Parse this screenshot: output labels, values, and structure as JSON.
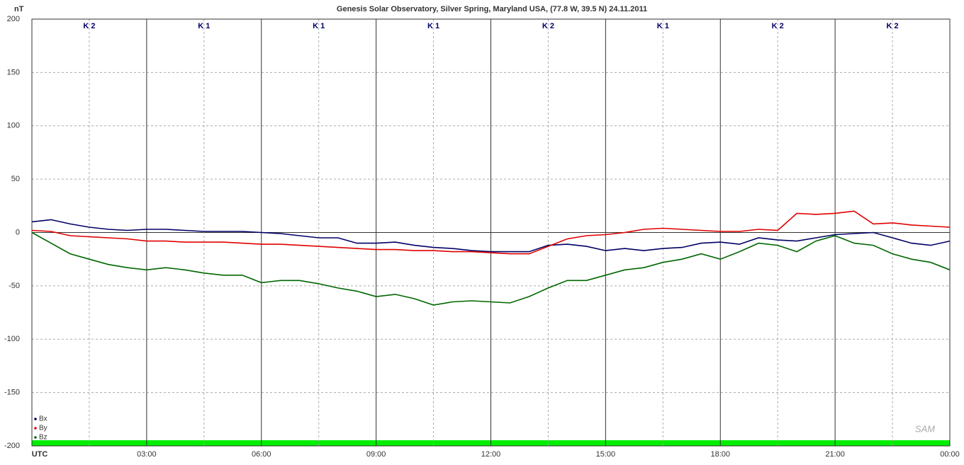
{
  "chart_data": {
    "type": "line",
    "title": "Genesis Solar Observatory, Silver Spring, Maryland USA, (77.8 W, 39.5 N)  24.11.2011",
    "y_label": "nT",
    "k_labels": [
      "K 2",
      "K 1",
      "K 1",
      "K 1",
      "K 2",
      "K 1",
      "K 2",
      "K 2"
    ],
    "x": [
      0,
      0.5,
      1,
      1.5,
      2,
      2.5,
      3,
      3.5,
      4,
      4.5,
      5,
      5.5,
      6,
      6.5,
      7,
      7.5,
      8,
      8.5,
      9,
      9.5,
      10,
      10.5,
      11,
      11.5,
      12,
      12.5,
      13,
      13.5,
      14,
      14.5,
      15,
      15.5,
      16,
      16.5,
      17,
      17.5,
      18,
      18.5,
      19,
      19.5,
      20,
      20.5,
      21,
      21.5,
      22,
      22.5,
      23,
      23.5,
      24
    ],
    "series": [
      {
        "name": "Bx",
        "color": "#000066",
        "values": [
          10,
          12,
          8,
          5,
          3,
          2,
          3,
          3,
          2,
          1,
          1,
          1,
          0,
          -1,
          -3,
          -5,
          -5,
          -10,
          -10,
          -9,
          -12,
          -14,
          -15,
          -17,
          -18,
          -18,
          -18,
          -12,
          -11,
          -13,
          -17,
          -15,
          -17,
          -15,
          -14,
          -10,
          -9,
          -11,
          -5,
          -7,
          -8,
          -5,
          -2,
          -1,
          0,
          -5,
          -10,
          -12,
          -8
        ]
      },
      {
        "name": "By",
        "color": "#e00000",
        "values": [
          2,
          1,
          -3,
          -4,
          -5,
          -6,
          -8,
          -8,
          -9,
          -9,
          -9,
          -10,
          -11,
          -11,
          -12,
          -13,
          -14,
          -15,
          -16,
          -16,
          -17,
          -17,
          -18,
          -18,
          -19,
          -20,
          -20,
          -13,
          -6,
          -3,
          -2,
          0,
          3,
          4,
          3,
          2,
          1,
          1,
          3,
          2,
          18,
          17,
          18,
          20,
          8,
          9,
          7,
          6,
          5
        ]
      },
      {
        "name": "Bz",
        "color": "#006600",
        "values": [
          0,
          -10,
          -20,
          -25,
          -30,
          -33,
          -35,
          -33,
          -35,
          -38,
          -40,
          -40,
          -47,
          -45,
          -45,
          -48,
          -52,
          -55,
          -60,
          -58,
          -62,
          -68,
          -65,
          -64,
          -65,
          -66,
          -60,
          -52,
          -45,
          -45,
          -40,
          -35,
          -33,
          -28,
          -25,
          -20,
          -25,
          -18,
          -10,
          -12,
          -18,
          -8,
          -3,
          -10,
          -12,
          -20,
          -25,
          -28,
          -35
        ]
      }
    ],
    "xlim": [
      0,
      24
    ],
    "xticks": [
      {
        "value": 0,
        "label": "UTC"
      },
      {
        "value": 3,
        "label": "03:00"
      },
      {
        "value": 6,
        "label": "06:00"
      },
      {
        "value": 9,
        "label": "09:00"
      },
      {
        "value": 12,
        "label": "12:00"
      },
      {
        "value": 15,
        "label": "15:00"
      },
      {
        "value": 18,
        "label": "18:00"
      },
      {
        "value": 21,
        "label": "21:00"
      },
      {
        "value": 24,
        "label": "00:00"
      }
    ],
    "ylim": [
      -200,
      200
    ],
    "yticks": [
      -200,
      -150,
      -100,
      -50,
      0,
      50,
      100,
      150,
      200
    ],
    "grid": true,
    "legend": "bottom-left"
  }
}
